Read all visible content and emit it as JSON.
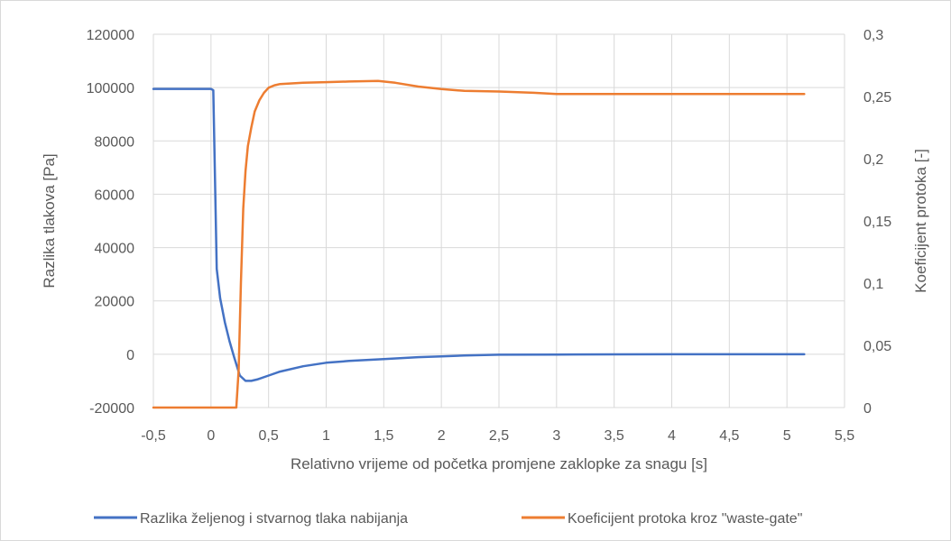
{
  "chart_data": {
    "type": "line",
    "title": "",
    "xlabel": "Relativno vrijeme od početka promjene zaklopke za snagu [s]",
    "ylabel": "Razlika tlakova [Pa]",
    "y2label": "Koeficijent protoka [-]",
    "xlim": [
      -0.5,
      5.5
    ],
    "ylim": [
      -20000,
      120000
    ],
    "y2lim": [
      0,
      0.3
    ],
    "grid": true,
    "legend": "bottom",
    "x_ticks": [
      "-0,5",
      "0",
      "0,5",
      "1",
      "1,5",
      "2",
      "2,5",
      "3",
      "3,5",
      "4",
      "4,5",
      "5",
      "5,5"
    ],
    "y_ticks": [
      "-20000",
      "0",
      "20000",
      "40000",
      "60000",
      "80000",
      "100000",
      "120000"
    ],
    "y2_ticks": [
      "0",
      "0,05",
      "0,1",
      "0,15",
      "0,2",
      "0,25",
      "0,3"
    ],
    "series": [
      {
        "name": "Razlika željenog i stvarnog tlaka nabijanja",
        "color": "#4472c4",
        "axis": "left",
        "x": [
          -0.5,
          0.0,
          0.02,
          0.05,
          0.08,
          0.12,
          0.16,
          0.2,
          0.25,
          0.3,
          0.35,
          0.4,
          0.5,
          0.6,
          0.8,
          1.0,
          1.2,
          1.5,
          1.8,
          2.0,
          2.2,
          2.5,
          3.0,
          3.5,
          4.0,
          4.5,
          5.0,
          5.15
        ],
        "y": [
          99500,
          99500,
          99000,
          32000,
          21000,
          12000,
          5000,
          -1000,
          -8000,
          -10000,
          -10000,
          -9500,
          -8000,
          -6500,
          -4500,
          -3200,
          -2500,
          -1800,
          -1100,
          -800,
          -500,
          -200,
          -100,
          -50,
          0,
          0,
          0,
          0
        ]
      },
      {
        "name": "Koeficijent protoka kroz \"waste-gate\"",
        "color": "#ed7d31",
        "axis": "right",
        "x": [
          -0.5,
          0.22,
          0.24,
          0.26,
          0.28,
          0.3,
          0.32,
          0.35,
          0.38,
          0.42,
          0.46,
          0.5,
          0.55,
          0.6,
          0.7,
          0.8,
          1.0,
          1.2,
          1.45,
          1.6,
          1.8,
          2.0,
          2.2,
          2.5,
          2.8,
          3.0,
          3.5,
          4.0,
          4.5,
          5.0,
          5.15
        ],
        "y": [
          0,
          0,
          0.03,
          0.1,
          0.16,
          0.19,
          0.21,
          0.225,
          0.238,
          0.247,
          0.253,
          0.257,
          0.259,
          0.26,
          0.2605,
          0.261,
          0.2615,
          0.262,
          0.2625,
          0.261,
          0.258,
          0.256,
          0.2545,
          0.254,
          0.253,
          0.252,
          0.252,
          0.252,
          0.252,
          0.252,
          0.252
        ]
      }
    ]
  }
}
